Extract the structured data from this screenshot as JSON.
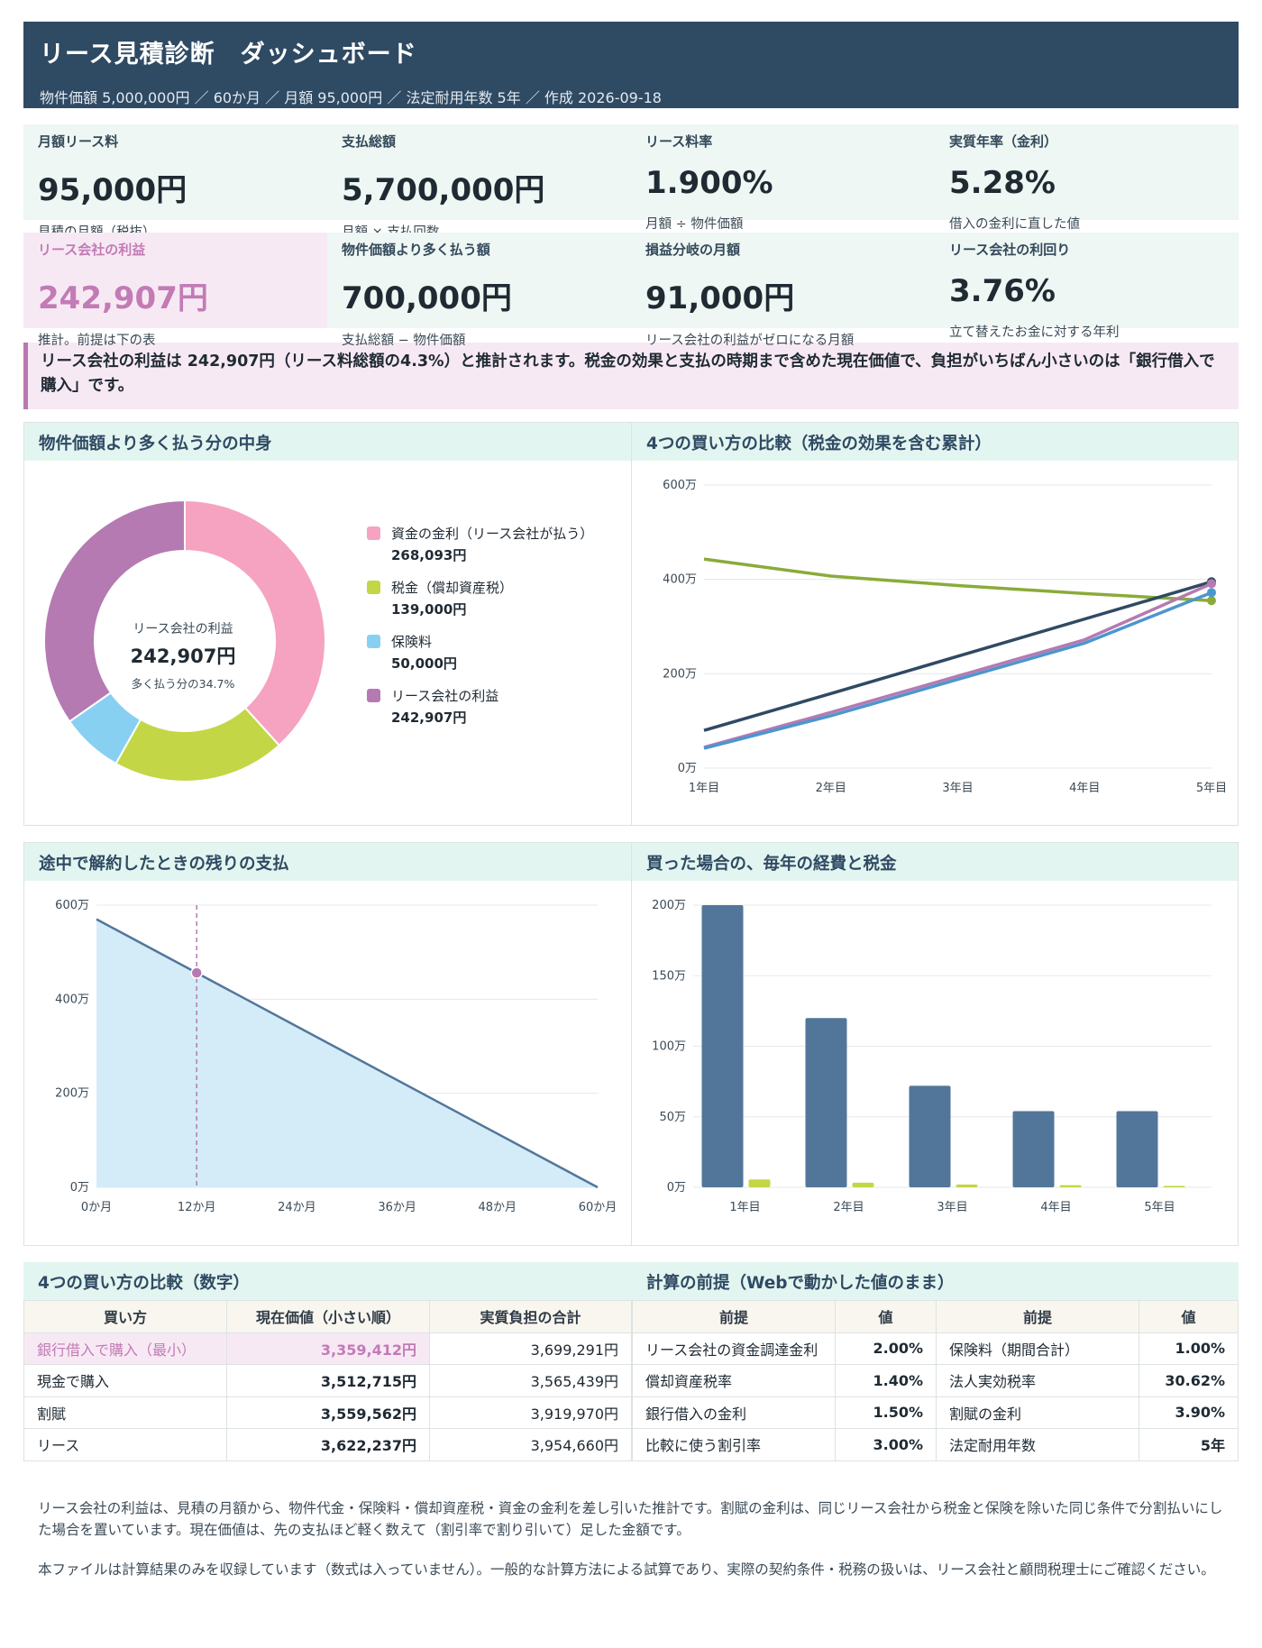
{
  "header": {
    "title": "リース見積診断　ダッシュボード",
    "subtitle": "物件価額 5,000,000円 ／ 60か月 ／ 月額 95,000円 ／ 法定耐用年数 5年 ／ 作成 2026-09-18"
  },
  "kpis": [
    {
      "label": "月額リース料",
      "value": "95,000円",
      "note": "見積の月額（税抜）"
    },
    {
      "label": "支払総額",
      "value": "5,700,000円",
      "note": "月額 × 支払回数"
    },
    {
      "label": "リース料率",
      "value": "1.900%",
      "note": "月額 ÷ 物件価額"
    },
    {
      "label": "実質年率（金利）",
      "value": "5.28%",
      "note": "借入の金利に直した値"
    },
    {
      "label": "リース会社の利益",
      "value": "242,907円",
      "note": "推計。前提は下の表"
    },
    {
      "label": "物件価額より多く払う額",
      "value": "700,000円",
      "note": "支払総額 − 物件価額"
    },
    {
      "label": "損益分岐の月額",
      "value": "91,000円",
      "note": "リース会社の利益がゼロになる月額"
    },
    {
      "label": "リース会社の利回り",
      "value": "3.76%",
      "note": "立て替えたお金に対する年利"
    }
  ],
  "callout": "リース会社の利益は 242,907円（リース料総額の4.3%）と推計されます。税金の効果と支払の時期まで含めた現在価値で、負担がいちばん小さいのは「銀行借入で購入」です。",
  "panels": {
    "donut_title": "物件価額より多く払う分の中身",
    "lines_title": "4つの買い方の比較（税金の効果を含む累計）",
    "area_title": "途中で解約したときの残りの支払",
    "bars_title": "買った場合の、毎年の経費と税金",
    "table1_title": "4つの買い方の比較（数字）",
    "table2_title": "計算の前提（Webで動かした値のまま）"
  },
  "donut_center": {
    "label": "リース会社の利益",
    "value": "242,907円",
    "sub": "多く払う分の34.7%"
  },
  "colors": {
    "pink": "#f5a3c0",
    "lime": "#c3d645",
    "sky": "#88d0f2",
    "purple": "#b57ab2",
    "navy": "#2f4a63",
    "green": "#8aab3a",
    "blue": "#4c96cf",
    "bar": "#52769a",
    "area": "#d3ecf8"
  },
  "chart_data": [
    {
      "type": "pie",
      "categories": [
        "資金の金利（リース会社が払う）",
        "税金（償却資産税）",
        "保険料",
        "リース会社の利益"
      ],
      "values": [
        268093,
        139000,
        50000,
        242907
      ],
      "value_labels": [
        "268,093円",
        "139,000円",
        "50,000円",
        "242,907円"
      ]
    },
    {
      "type": "line",
      "categories": [
        "1年目",
        "2年目",
        "3年目",
        "4年目",
        "5年目"
      ],
      "y_ticks": [
        "0万",
        "200万",
        "400万",
        "600万"
      ],
      "ylim": [
        0,
        600
      ],
      "series": [
        {
          "values": [
            443,
            407,
            387,
            370,
            355
          ]
        },
        {
          "values": [
            80,
            158,
            237,
            316,
            395
          ]
        },
        {
          "values": [
            44,
            118,
            195,
            272,
            391
          ]
        },
        {
          "values": [
            42,
            111,
            188,
            265,
            372
          ]
        }
      ]
    },
    {
      "type": "area",
      "x_ticks": [
        "0か月",
        "12か月",
        "24か月",
        "36か月",
        "48か月",
        "60か月"
      ],
      "y_ticks": [
        "0万",
        "200万",
        "400万",
        "600万"
      ],
      "ylim": [
        0,
        600
      ],
      "xlim": [
        0,
        60
      ],
      "x": [
        0,
        60
      ],
      "y": [
        570,
        0
      ],
      "marker": {
        "x": 12,
        "y": 456
      }
    },
    {
      "type": "bar",
      "categories": [
        "1年目",
        "2年目",
        "3年目",
        "4年目",
        "5年目"
      ],
      "y_ticks": [
        "0万",
        "50万",
        "100万",
        "150万",
        "200万"
      ],
      "ylim": [
        0,
        200
      ],
      "series": [
        {
          "values": [
            200,
            120,
            72,
            54,
            54
          ]
        },
        {
          "values": [
            5.6,
            3.3,
            2.0,
            1.5,
            1.0
          ]
        }
      ]
    }
  ],
  "table1": {
    "headers": [
      "買い方",
      "現在価値（小さい順）",
      "実質負担の合計"
    ],
    "rows": [
      [
        "銀行借入で購入（最小）",
        "3,359,412円",
        "3,699,291円"
      ],
      [
        "現金で購入",
        "3,512,715円",
        "3,565,439円"
      ],
      [
        "割賦",
        "3,559,562円",
        "3,919,970円"
      ],
      [
        "リース",
        "3,622,237円",
        "3,954,660円"
      ]
    ]
  },
  "table2": {
    "headers": [
      "前提",
      "値",
      "前提",
      "値"
    ],
    "rows": [
      [
        "リース会社の資金調達金利",
        "2.00%",
        "保険料（期間合計）",
        "1.00%"
      ],
      [
        "償却資産税率",
        "1.40%",
        "法人実効税率",
        "30.62%"
      ],
      [
        "銀行借入の金利",
        "1.50%",
        "割賦の金利",
        "3.90%"
      ],
      [
        "比較に使う割引率",
        "3.00%",
        "法定耐用年数",
        "5年"
      ]
    ]
  },
  "footer": [
    "リース会社の利益は、見積の月額から、物件代金・保険料・償却資産税・資金の金利を差し引いた推計です。割賦の金利は、同じリース会社から税金と保険を除いた同じ条件で分割払いにした場合を置いています。現在価値は、先の支払ほど軽く数えて（割引率で割り引いて）足した金額です。",
    "本ファイルは計算結果のみを収録しています（数式は入っていません）。一般的な計算方法による試算であり、実際の契約条件・税務の扱いは、リース会社と顧問税理士にご確認ください。"
  ]
}
